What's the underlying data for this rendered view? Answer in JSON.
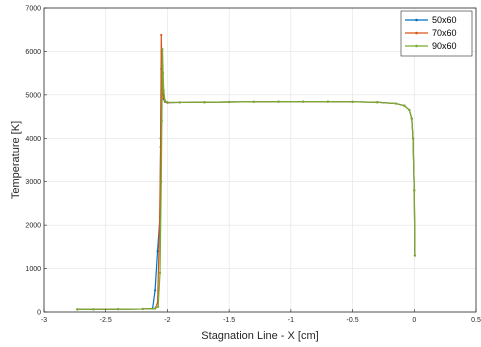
{
  "chart_data": {
    "type": "line",
    "title": "",
    "xlabel": "Stagnation Line - X [cm]",
    "ylabel": "Temperature [K]",
    "xlim": [
      -3,
      0.5
    ],
    "ylim": [
      0,
      7000
    ],
    "xticks": [
      -3,
      -2.5,
      -2,
      -1.5,
      -1,
      -0.5,
      0,
      0.5
    ],
    "xtick_labels": [
      "-3",
      "-2.5",
      "-2",
      "-1.5",
      "-1",
      "-0.5",
      "0",
      "0.5"
    ],
    "yticks": [
      0,
      1000,
      2000,
      3000,
      4000,
      5000,
      6000,
      7000
    ],
    "ytick_labels": [
      "0",
      "1000",
      "2000",
      "3000",
      "4000",
      "5000",
      "6000",
      "7000"
    ],
    "grid": true,
    "legend_position": "top-right",
    "series": [
      {
        "name": "50x60",
        "color": "#0072bd",
        "x": [
          -2.73,
          -2.6,
          -2.4,
          -2.2,
          -2.12,
          -2.1,
          -2.08,
          -2.06,
          -2.055,
          -2.05,
          -2.045,
          -2.04,
          -2.03,
          -2.02,
          -2.0,
          -1.9,
          -1.7,
          -1.5,
          -1.3,
          -1.1,
          -0.9,
          -0.7,
          -0.5,
          -0.3,
          -0.15,
          -0.08,
          -0.04,
          -0.02,
          -0.01,
          0.0,
          0.005
        ],
        "y": [
          60,
          60,
          65,
          70,
          80,
          500,
          1400,
          2200,
          4000,
          5600,
          5400,
          5100,
          4900,
          4840,
          4820,
          4825,
          4830,
          4835,
          4840,
          4845,
          4845,
          4845,
          4840,
          4830,
          4800,
          4750,
          4650,
          4450,
          4000,
          2800,
          1300
        ]
      },
      {
        "name": "70x60",
        "color": "#d95319",
        "x": [
          -2.73,
          -2.6,
          -2.4,
          -2.2,
          -2.1,
          -2.08,
          -2.065,
          -2.055,
          -2.05,
          -2.045,
          -2.04,
          -2.03,
          -2.02,
          -2.0,
          -1.9,
          -1.7,
          -1.5,
          -1.3,
          -1.1,
          -0.9,
          -0.7,
          -0.5,
          -0.3,
          -0.15,
          -0.08,
          -0.04,
          -0.02,
          -0.01,
          0.0,
          0.005
        ],
        "y": [
          60,
          60,
          65,
          70,
          80,
          200,
          1800,
          3800,
          6380,
          5700,
          5200,
          4920,
          4850,
          4820,
          4825,
          4830,
          4835,
          4840,
          4845,
          4845,
          4845,
          4840,
          4830,
          4800,
          4750,
          4650,
          4450,
          4000,
          2800,
          1300
        ]
      },
      {
        "name": "90x60",
        "color": "#77ac30",
        "x": [
          -2.73,
          -2.6,
          -2.4,
          -2.2,
          -2.1,
          -2.075,
          -2.06,
          -2.05,
          -2.045,
          -2.04,
          -2.035,
          -2.03,
          -2.02,
          -2.0,
          -1.9,
          -1.7,
          -1.5,
          -1.3,
          -1.1,
          -0.9,
          -0.7,
          -0.5,
          -0.3,
          -0.15,
          -0.08,
          -0.04,
          -0.02,
          -0.01,
          0.0,
          0.005
        ],
        "y": [
          60,
          60,
          65,
          70,
          80,
          120,
          900,
          3000,
          4400,
          6050,
          5500,
          5100,
          4870,
          4830,
          4825,
          4830,
          4835,
          4840,
          4845,
          4845,
          4845,
          4840,
          4830,
          4800,
          4750,
          4650,
          4450,
          4000,
          2800,
          1300
        ]
      }
    ]
  }
}
